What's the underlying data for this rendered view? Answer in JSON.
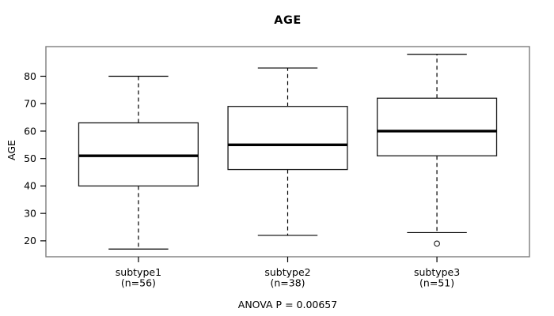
{
  "chart_data": {
    "type": "boxplot",
    "title": "AGE",
    "ylabel": "AGE",
    "footer": "ANOVA P = 0.00657",
    "yticks": [
      20,
      30,
      40,
      50,
      60,
      70,
      80
    ],
    "ylim": [
      14.2,
      90.8
    ],
    "xlim": [
      0.38,
      3.62
    ],
    "box_width": 0.8,
    "cap_width": 0.4,
    "groups": [
      {
        "label": "subtype1",
        "sublabel": "(n=56)",
        "position": 1,
        "whisker_low": 17,
        "q1": 40,
        "median": 51,
        "q3": 63,
        "whisker_high": 80,
        "outliers": []
      },
      {
        "label": "subtype2",
        "sublabel": "(n=38)",
        "position": 2,
        "whisker_low": 22,
        "q1": 46,
        "median": 55,
        "q3": 69,
        "whisker_high": 83,
        "outliers": []
      },
      {
        "label": "subtype3",
        "sublabel": "(n=51)",
        "position": 3,
        "whisker_low": 23,
        "q1": 51,
        "median": 60,
        "q3": 72,
        "whisker_high": 88,
        "outliers": [
          19
        ]
      }
    ],
    "colors": {
      "plot_border": "#7d7d7d",
      "box_border": "#1a1a1a",
      "box_fill": "#ffffff",
      "median": "#000000",
      "whisker": "#000000",
      "axis_tick": "#000000",
      "text": "#000000",
      "background": "#ffffff"
    }
  }
}
